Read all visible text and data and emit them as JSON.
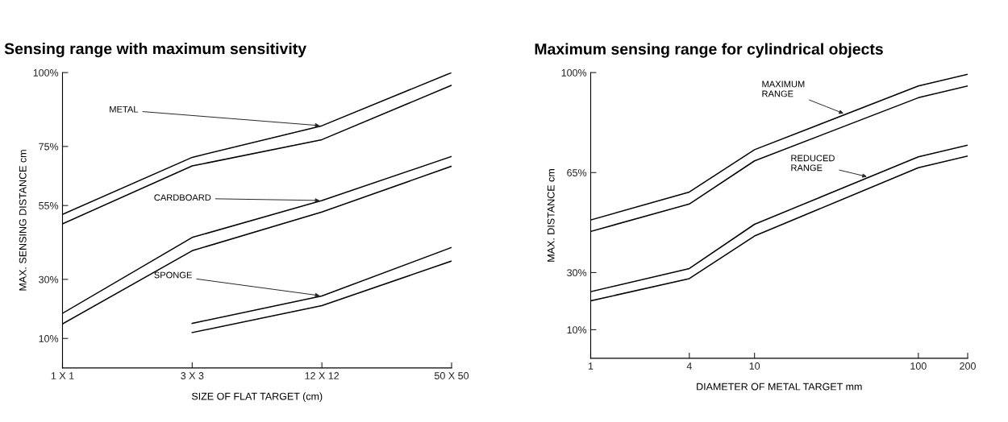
{
  "chart_data": [
    {
      "type": "line",
      "title": "Sensing range with maximum sensitivity",
      "xlabel": "SIZE OF FLAT TARGET (cm)",
      "ylabel": "MAX. SENSING DISTANCE cm",
      "categories": [
        "1 X 1",
        "3 X 3",
        "12 X 12",
        "50 X 50"
      ],
      "ylim": [
        0,
        100
      ],
      "yticks": [
        {
          "value": 10,
          "label": "10%"
        },
        {
          "value": 30,
          "label": "30%"
        },
        {
          "value": 55,
          "label": "55%"
        },
        {
          "value": 75,
          "label": "75%"
        },
        {
          "value": 100,
          "label": "100%"
        }
      ],
      "grid": false,
      "legend": false,
      "marker": "none",
      "line_style": "solid",
      "series": [
        {
          "color": "#000000",
          "values": [
            52,
            71.3,
            82,
            100
          ]
        },
        {
          "color": "#000000",
          "values": [
            48.8,
            68.4,
            77.3,
            95.7
          ]
        },
        {
          "color": "#000000",
          "values": [
            18.5,
            44.2,
            56.7,
            71.6
          ]
        },
        {
          "color": "#000000",
          "values": [
            14.9,
            39.7,
            52.8,
            68.3
          ]
        },
        {
          "color": "#000000",
          "values": [
            null,
            15.1,
            24.4,
            40.8
          ]
        },
        {
          "color": "#000000",
          "values": [
            null,
            12,
            21.1,
            36.2
          ]
        }
      ],
      "annotations": [
        {
          "text": "METAL",
          "x": "12 X 12",
          "y": 82
        },
        {
          "text": "CARDBOARD",
          "x": "12 X 12",
          "y": 56.7
        },
        {
          "text": "SPONGE",
          "x": "12 X 12",
          "y": 24.4
        }
      ]
    },
    {
      "type": "line",
      "title": "Maximum sensing range for cylindrical objects",
      "xlabel": "DIAMETER OF METAL TARGET mm",
      "ylabel": "MAX. DISTANCE cm",
      "log": "x",
      "xlim": [
        1,
        200
      ],
      "xticks": [
        1,
        4,
        10,
        100,
        200
      ],
      "ylim": [
        0,
        100
      ],
      "yticks": [
        {
          "value": 10,
          "label": "10%"
        },
        {
          "value": 30,
          "label": "30%"
        },
        {
          "value": 65,
          "label": "65%"
        },
        {
          "value": 100,
          "label": "100%"
        }
      ],
      "grid": false,
      "legend": false,
      "marker": "none",
      "line_style": "solid",
      "series": [
        {
          "color": "#000000",
          "x": [
            1,
            4,
            10,
            100,
            200
          ],
          "values": [
            48.4,
            58.2,
            73,
            95.3,
            99.4
          ]
        },
        {
          "color": "#000000",
          "x": [
            1,
            4,
            10,
            100,
            200
          ],
          "values": [
            44.4,
            54,
            69.1,
            91.2,
            95.3
          ]
        },
        {
          "color": "#000000",
          "x": [
            1,
            4,
            10,
            100,
            200
          ],
          "values": [
            23.3,
            31.4,
            46.9,
            70.5,
            74.6
          ]
        },
        {
          "color": "#000000",
          "x": [
            1,
            4,
            10,
            100,
            200
          ],
          "values": [
            20.1,
            27.9,
            42.8,
            66.7,
            70.8
          ]
        }
      ],
      "annotations": [
        {
          "text": "MAXIMUM\nRANGE",
          "x": 36,
          "y": 85.4
        },
        {
          "text": "REDUCED\nRANGE",
          "x": 50,
          "y": 63.4
        }
      ]
    }
  ]
}
